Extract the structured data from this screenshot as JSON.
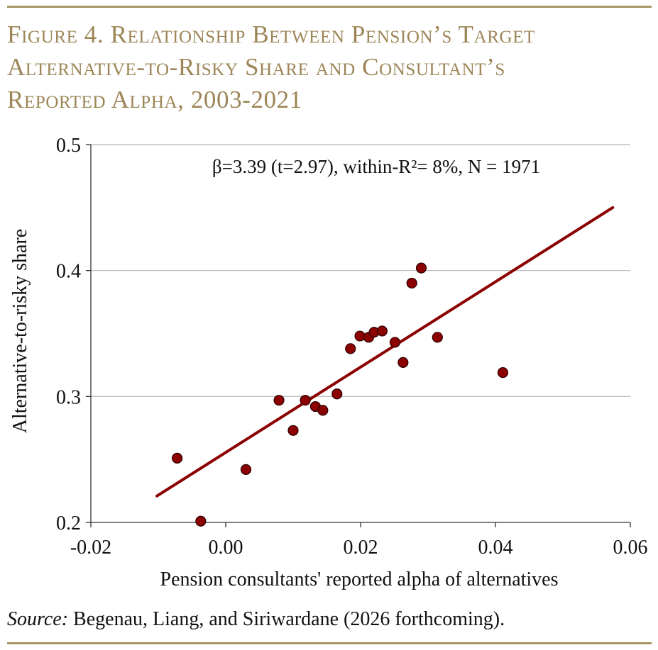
{
  "title": {
    "lines": [
      "Figure 4. Relationship Between Pension’s Target",
      "Alternative-to-Risky Share and Consultant’s",
      "Reported Alpha, 2003-2021"
    ]
  },
  "source": {
    "label": "Source:",
    "text": " Begenau, Liang, and Siriwardane (2026 forthcoming)."
  },
  "colors": {
    "accent": "#a79467",
    "title": "#9c8556",
    "series": "#8b0000",
    "grid": "#b5b5b5"
  },
  "chart_data": {
    "type": "scatter",
    "title": "",
    "xlabel": "Pension consultants' reported alpha of alternatives",
    "ylabel": "Alternative-to-risky share",
    "xlim": [
      -0.02,
      0.06
    ],
    "ylim": [
      0.2,
      0.5
    ],
    "x_ticks": [
      -0.02,
      0.0,
      0.02,
      0.04,
      0.06
    ],
    "x_tick_labels": [
      "-0.02",
      "0.00",
      "0.02",
      "0.04",
      "0.06"
    ],
    "y_ticks": [
      0.2,
      0.3,
      0.4,
      0.5
    ],
    "y_tick_labels": [
      "0.2",
      "0.3",
      "0.4",
      "0.5"
    ],
    "grid": "horizontal",
    "annotation": "β=3.39 (t=2.97), within-R²= 8%, N = 1971",
    "points": [
      {
        "x": -0.0072,
        "y": 0.251
      },
      {
        "x": -0.0037,
        "y": 0.201
      },
      {
        "x": 0.003,
        "y": 0.242
      },
      {
        "x": 0.0079,
        "y": 0.297
      },
      {
        "x": 0.01,
        "y": 0.273
      },
      {
        "x": 0.0118,
        "y": 0.297
      },
      {
        "x": 0.0133,
        "y": 0.292
      },
      {
        "x": 0.0144,
        "y": 0.289
      },
      {
        "x": 0.0165,
        "y": 0.302
      },
      {
        "x": 0.0185,
        "y": 0.338
      },
      {
        "x": 0.0199,
        "y": 0.348
      },
      {
        "x": 0.0212,
        "y": 0.347
      },
      {
        "x": 0.022,
        "y": 0.351
      },
      {
        "x": 0.0232,
        "y": 0.352
      },
      {
        "x": 0.0251,
        "y": 0.343
      },
      {
        "x": 0.0263,
        "y": 0.327
      },
      {
        "x": 0.0276,
        "y": 0.39
      },
      {
        "x": 0.029,
        "y": 0.402
      },
      {
        "x": 0.0314,
        "y": 0.347
      },
      {
        "x": 0.0411,
        "y": 0.319
      }
    ],
    "fit_line": {
      "x": [
        -0.0102,
        0.0574
      ],
      "y": [
        0.221,
        0.45
      ]
    }
  }
}
